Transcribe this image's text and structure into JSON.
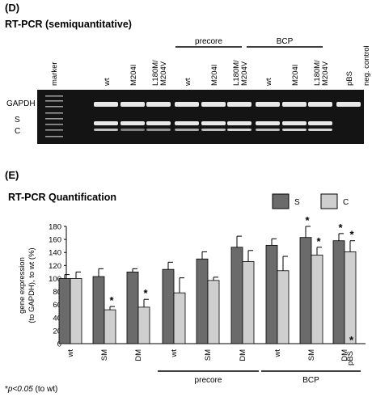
{
  "panel_d": {
    "label": "(D)",
    "title": "RT-PCR (semiquantitative)",
    "lanes": [
      "marker",
      "wt",
      "M204I",
      "L180M/\nM204V",
      "wt",
      "M204I",
      "L180M/\nM204V",
      "wt",
      "M204I",
      "L180M/\nM204V",
      "pBS",
      "neg. control"
    ],
    "groups": [
      "precore",
      "BCP"
    ],
    "bands": [
      "GAPDH",
      "S",
      "C"
    ]
  },
  "panel_e": {
    "label": "(E)",
    "title": "RT-PCR Quantification",
    "footnote_star": "*",
    "footnote_text": "p<0.05",
    "footnote_suffix": " (to wt)",
    "pbs_label": "pBS",
    "pbs_star": "*"
  },
  "colors": {
    "series_s": "#6b6b6b",
    "series_c": "#cfcfcf",
    "gel_bg": "#141414",
    "band": "#e9e9e9"
  },
  "chart_data": {
    "type": "bar",
    "title": "RT-PCR Quantification",
    "ylabel": "gene expression\n(to GAPDH), to wt (%)",
    "xlabel": "",
    "ylim": [
      0,
      180
    ],
    "yticks": [
      0,
      20,
      40,
      60,
      80,
      100,
      120,
      140,
      160,
      180
    ],
    "grid": true,
    "legend_position": "top-right",
    "categories": [
      "wt",
      "SM",
      "DM",
      "wt",
      "SM",
      "DM",
      "wt",
      "SM",
      "DM"
    ],
    "groups": [
      {
        "name": "",
        "categories": [
          0,
          1,
          2
        ]
      },
      {
        "name": "precore",
        "categories": [
          3,
          4,
          5
        ]
      },
      {
        "name": "BCP",
        "categories": [
          6,
          7,
          8
        ]
      }
    ],
    "series": [
      {
        "name": "S",
        "values": [
          100,
          103,
          110,
          114,
          130,
          148,
          151,
          163,
          158
        ],
        "errors": [
          6,
          12,
          5,
          11,
          11,
          17,
          10,
          17,
          11
        ],
        "significant": [
          false,
          false,
          false,
          false,
          false,
          false,
          false,
          true,
          true
        ]
      },
      {
        "name": "C",
        "values": [
          100,
          52,
          56,
          78,
          97,
          126,
          112,
          136,
          141
        ],
        "errors": [
          10,
          5,
          12,
          23,
          5,
          17,
          22,
          12,
          17
        ],
        "significant": [
          false,
          true,
          true,
          false,
          false,
          false,
          false,
          true,
          true
        ]
      }
    ]
  }
}
